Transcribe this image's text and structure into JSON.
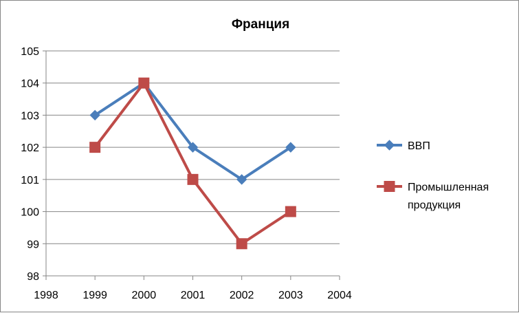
{
  "chart_data": {
    "type": "line",
    "title": "Франция",
    "xlabel": "",
    "ylabel": "",
    "x": [
      1999,
      2000,
      2001,
      2002,
      2003
    ],
    "xlim": [
      1998,
      2004
    ],
    "xticks": [
      "1998",
      "1999",
      "2000",
      "2001",
      "2002",
      "2003",
      "2004"
    ],
    "ylim": [
      98,
      105
    ],
    "yticks": [
      "98",
      "99",
      "100",
      "101",
      "102",
      "103",
      "104",
      "105"
    ],
    "grid": "horizontal",
    "legend_position": "right",
    "series": [
      {
        "name": "ВВП",
        "values": [
          103,
          104,
          102,
          101,
          102
        ],
        "color": "#4a7ebb",
        "marker": "diamond"
      },
      {
        "name_lines": [
          "Промышленная",
          "продукция"
        ],
        "values": [
          102,
          104,
          101,
          99,
          100
        ],
        "color": "#be4b48",
        "marker": "square"
      }
    ]
  }
}
